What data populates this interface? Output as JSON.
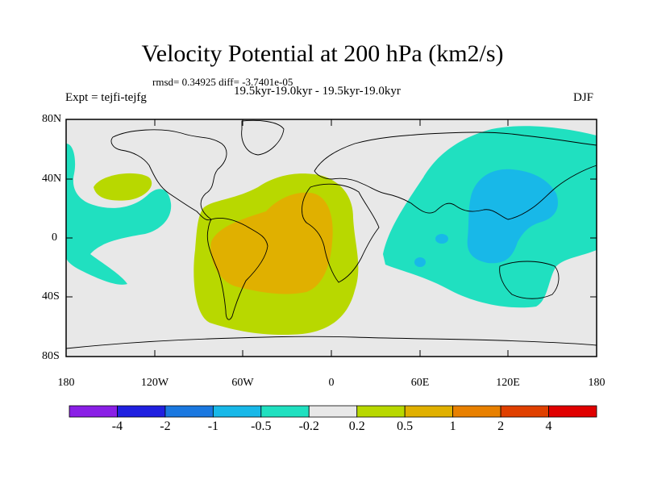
{
  "title": "Velocity Potential at 200 hPa (km2/s)",
  "stats": "rmsd= 0.34925 diff= -3.7401e-05",
  "subtitle": "19.5kyr-19.0kyr - 19.5kyr-19.0kyr",
  "expt": "Expt = tejfi-tejfg",
  "season": "DJF",
  "lat_labels": [
    "80N",
    "40N",
    "0",
    "40S",
    "80S"
  ],
  "lon_labels": [
    "180",
    "120W",
    "60W",
    "0",
    "60E",
    "120E",
    "180"
  ],
  "colorbar": {
    "labels": [
      "-4",
      "-2",
      "-1",
      "-0.5",
      "-0.2",
      "0.2",
      "0.5",
      "1",
      "2",
      "4"
    ],
    "colors": [
      "#8a1fe6",
      "#2020e0",
      "#1a78e0",
      "#18b8e8",
      "#20e0c0",
      "#e8e8e8",
      "#b8d800",
      "#e0b000",
      "#e88000",
      "#e04000",
      "#e00000"
    ]
  },
  "field_colors": {
    "background": "#e8e8e8",
    "negative_light": "#20e0c0",
    "negative_medium": "#18b8e8",
    "positive_light": "#b8d800",
    "positive_medium": "#e0b000"
  }
}
